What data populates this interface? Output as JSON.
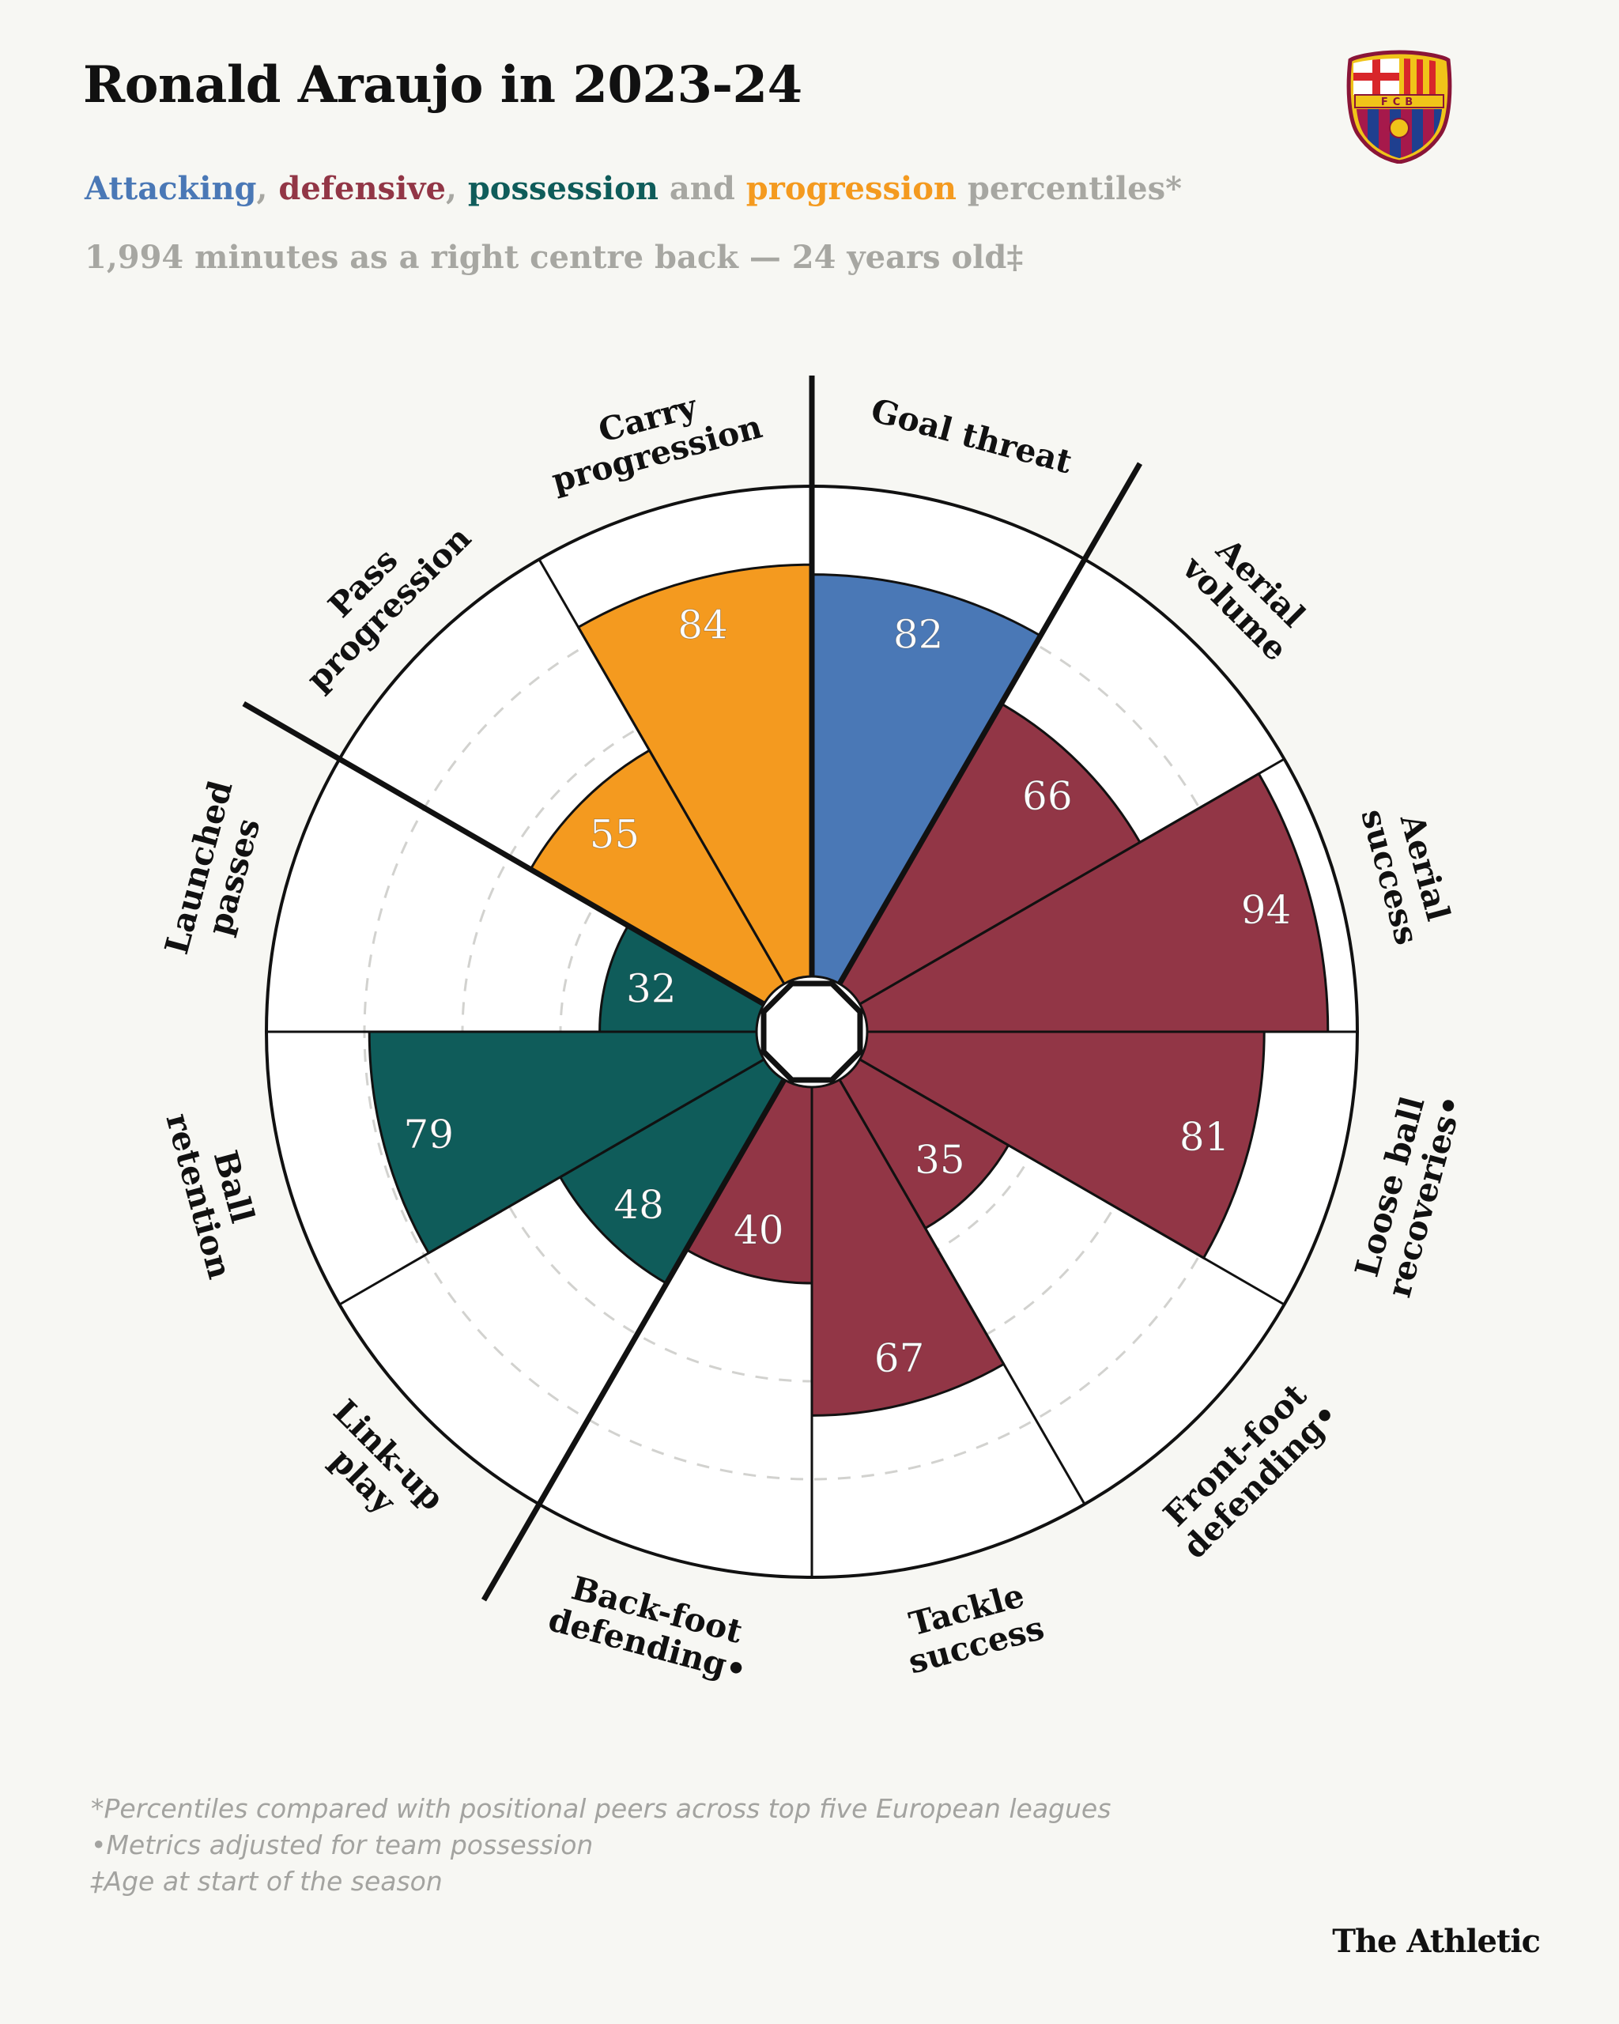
{
  "header": {
    "title": "Ronald Araujo in 2023-24",
    "subtitle_parts": [
      {
        "text": "Attacking",
        "color": "#4a78b6"
      },
      {
        "text": ", ",
        "color": "#a7a7a2"
      },
      {
        "text": "defensive",
        "color": "#923646"
      },
      {
        "text": ", ",
        "color": "#a7a7a2"
      },
      {
        "text": "possession",
        "color": "#0f5c5a"
      },
      {
        "text": " and ",
        "color": "#a7a7a2"
      },
      {
        "text": "progression",
        "color": "#f49a1f"
      },
      {
        "text": " percentiles*",
        "color": "#a7a7a2"
      }
    ],
    "meta": "1,994 minutes as a right centre back — 24 years old‡"
  },
  "logo": {
    "name": "fc-barcelona-crest",
    "text": "FCB"
  },
  "chart_data": {
    "type": "polar-bar",
    "unit": "percentile",
    "rlim": [
      0,
      100
    ],
    "gridlines": [
      20,
      40,
      60,
      80
    ],
    "colors": {
      "attacking": "#4a78b6",
      "defensive": "#923646",
      "possession": "#0f5c5a",
      "progression": "#f49a1f"
    },
    "segments": [
      {
        "label": "Goal threat",
        "value": 82,
        "category": "attacking"
      },
      {
        "label": "Aerial volume",
        "value": 66,
        "category": "defensive"
      },
      {
        "label": "Aerial success",
        "value": 94,
        "category": "defensive"
      },
      {
        "label": "Loose ball recoveries•",
        "value": 81,
        "category": "defensive"
      },
      {
        "label": "Front-foot defending•",
        "value": 35,
        "category": "defensive"
      },
      {
        "label": "Tackle success",
        "value": 67,
        "category": "defensive"
      },
      {
        "label": "Back-foot defending•",
        "value": 40,
        "category": "defensive"
      },
      {
        "label": "Link-up play",
        "value": 48,
        "category": "possession"
      },
      {
        "label": "Ball retention",
        "value": 79,
        "category": "possession"
      },
      {
        "label": "Launched passes",
        "value": 32,
        "category": "possession"
      },
      {
        "label": "Pass progression",
        "value": 55,
        "category": "progression"
      },
      {
        "label": "Carry progression",
        "value": 84,
        "category": "progression"
      }
    ],
    "labels": [
      [
        "Goal threat"
      ],
      [
        "Aerial",
        "volume"
      ],
      [
        "Aerial",
        "success"
      ],
      [
        "Loose ball",
        "recoveries•"
      ],
      [
        "Front-foot",
        "defending•"
      ],
      [
        "Tackle",
        "success"
      ],
      [
        "Back-foot",
        "defending•"
      ],
      [
        "Link-up",
        "play"
      ],
      [
        "Ball",
        "retention"
      ],
      [
        "Launched",
        "passes"
      ],
      [
        "Pass",
        "progression"
      ],
      [
        "Carry",
        "progression"
      ]
    ]
  },
  "footnotes": [
    "*Percentiles compared with positional peers across top five European leagues",
    "•Metrics adjusted for team possession",
    "‡Age at start of the season"
  ],
  "brand": "The Athletic"
}
